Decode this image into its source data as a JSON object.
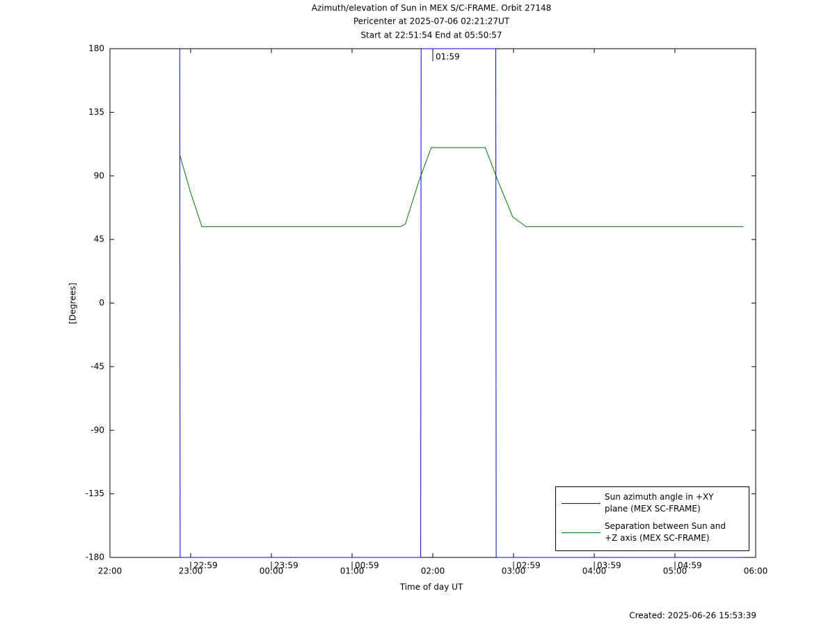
{
  "chart_data": {
    "type": "line",
    "title": "Azimuth/elevation of Sun in MEX S/C-FRAME.  Orbit 27148",
    "subtitle": [
      "Pericenter at 2025-07-06 02:21:27UT",
      "Start at 22:51:54 End at 05:50:57"
    ],
    "x_label": "Time of day UT",
    "y_label": "[Degrees]",
    "footer": "Created: 2025-06-26 15:53:39",
    "xlim": [
      22,
      30
    ],
    "xticks": [
      {
        "value": 22,
        "label": "22:00"
      },
      {
        "value": 23,
        "label": "23:00"
      },
      {
        "value": 24,
        "label": "00:00"
      },
      {
        "value": 25,
        "label": "01:00"
      },
      {
        "value": 26,
        "label": "02:00"
      },
      {
        "value": 27,
        "label": "03:00"
      },
      {
        "value": 28,
        "label": "04:00"
      },
      {
        "value": 29,
        "label": "05:00"
      },
      {
        "value": 30,
        "label": "06:00"
      }
    ],
    "ylim": [
      -180,
      180
    ],
    "yticks": [
      180,
      135,
      90,
      45,
      0,
      -45,
      -90,
      -135,
      -180
    ],
    "legend": "lower-right",
    "series": [
      {
        "name": "Sun azimuth angle in +XY plane (MEX SC-FRAME)",
        "color": "#0000cc",
        "x": [
          22.865,
          22.87,
          25.85,
          25.855,
          26.78,
          26.785,
          29.85
        ],
        "values": [
          180,
          -180,
          -180,
          180,
          180,
          -180,
          -180
        ]
      },
      {
        "name": "Separation between Sun and +Z axis (MEX SC-FRAME)",
        "color": "#007700",
        "x": [
          22.865,
          22.99,
          23.14,
          25.6,
          25.66,
          25.82,
          25.98,
          26.65,
          26.81,
          26.99,
          27.155,
          29.85
        ],
        "values": [
          105,
          80,
          54,
          54,
          56,
          85,
          110,
          110,
          86,
          61,
          54,
          54
        ]
      }
    ],
    "annotations": [
      {
        "text": "22:59",
        "x": 22.983,
        "y": -180
      },
      {
        "text": "23:59",
        "x": 23.983,
        "y": -180
      },
      {
        "text": "00:59",
        "x": 24.983,
        "y": -180
      },
      {
        "text": "01:59",
        "x": 25.983,
        "y": 180
      },
      {
        "text": "02:59",
        "x": 26.983,
        "y": -180
      },
      {
        "text": "03:59",
        "x": 27.983,
        "y": -180
      },
      {
        "text": "04:59",
        "x": 28.983,
        "y": -180
      }
    ]
  }
}
